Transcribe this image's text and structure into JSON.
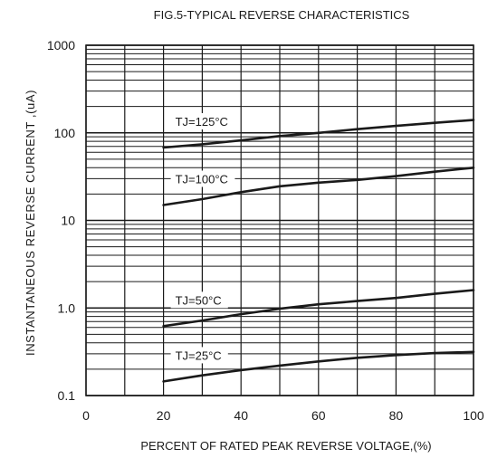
{
  "chart_data": {
    "type": "line",
    "title": "FIG.5-TYPICAL REVERSE CHARACTERISTICS",
    "xlabel": "PERCENT OF RATED PEAK REVERSE VOLTAGE,(%)",
    "ylabel": "INSTANTANEOUS  REVERSE  CURRENT ,(uA)",
    "x_scale": "linear",
    "y_scale": "log",
    "xlim": [
      0,
      100
    ],
    "ylim": [
      0.1,
      1000
    ],
    "x_ticks": [
      0,
      10,
      20,
      30,
      40,
      50,
      60,
      70,
      80,
      90,
      100
    ],
    "x_tick_labels": [
      "0",
      "20",
      "40",
      "60",
      "80",
      "100"
    ],
    "x_tick_label_values": [
      0,
      20,
      40,
      60,
      80,
      100
    ],
    "y_tick_labels": [
      "0.1",
      "1.0",
      "10",
      "100",
      "1000"
    ],
    "y_tick_label_values": [
      0.1,
      1,
      10,
      100,
      1000
    ],
    "grid": true,
    "series": [
      {
        "name": "TJ=125°C",
        "x": [
          20,
          30,
          40,
          50,
          60,
          70,
          80,
          90,
          100
        ],
        "y": [
          68,
          74,
          82,
          92,
          100,
          110,
          120,
          130,
          140
        ]
      },
      {
        "name": "TJ=100°C",
        "x": [
          20,
          30,
          40,
          50,
          60,
          70,
          80,
          90,
          100
        ],
        "y": [
          15,
          17.5,
          21,
          24.5,
          27,
          29,
          32,
          36,
          40
        ]
      },
      {
        "name": "TJ=50°C",
        "x": [
          20,
          30,
          40,
          50,
          60,
          70,
          80,
          90,
          100
        ],
        "y": [
          0.62,
          0.72,
          0.85,
          0.98,
          1.1,
          1.2,
          1.3,
          1.45,
          1.6
        ]
      },
      {
        "name": "TJ=25°C",
        "x": [
          20,
          30,
          40,
          50,
          60,
          70,
          80,
          90,
          100
        ],
        "y": [
          0.145,
          0.17,
          0.195,
          0.22,
          0.245,
          0.27,
          0.29,
          0.305,
          0.315
        ]
      }
    ]
  }
}
